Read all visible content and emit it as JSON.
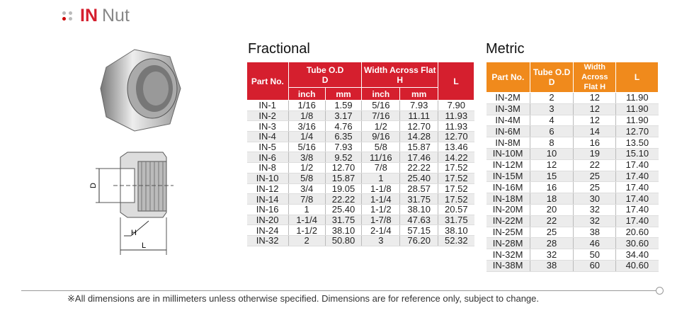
{
  "header": {
    "brand": "IN",
    "title": "Nut"
  },
  "diagram": {
    "label_d": "D",
    "label_h": "H",
    "label_l": "L"
  },
  "fractional": {
    "title": "Fractional",
    "headers": {
      "part": "Part No.",
      "tube": "Tube O.D",
      "tube_sub": "D",
      "width": "Width Across Flat H",
      "l": "L",
      "inch": "inch",
      "mm": "mm",
      "inch2": "inch",
      "mm2": "mm"
    },
    "rows": [
      [
        "IN-1",
        "1/16",
        "1.59",
        "5/16",
        "7.93",
        "7.90"
      ],
      [
        "IN-2",
        "1/8",
        "3.17",
        "7/16",
        "11.11",
        "11.93"
      ],
      [
        "IN-3",
        "3/16",
        "4.76",
        "1/2",
        "12.70",
        "11.93"
      ],
      [
        "IN-4",
        "1/4",
        "6.35",
        "9/16",
        "14.28",
        "12.70"
      ],
      [
        "IN-5",
        "5/16",
        "7.93",
        "5/8",
        "15.87",
        "13.46"
      ],
      [
        "IN-6",
        "3/8",
        "9.52",
        "11/16",
        "17.46",
        "14.22"
      ],
      [
        "IN-8",
        "1/2",
        "12.70",
        "7/8",
        "22.22",
        "17.52"
      ],
      [
        "IN-10",
        "5/8",
        "15.87",
        "1",
        "25.40",
        "17.52"
      ],
      [
        "IN-12",
        "3/4",
        "19.05",
        "1-1/8",
        "28.57",
        "17.52"
      ],
      [
        "IN-14",
        "7/8",
        "22.22",
        "1-1/4",
        "31.75",
        "17.52"
      ],
      [
        "IN-16",
        "1",
        "25.40",
        "1-1/2",
        "38.10",
        "20.57"
      ],
      [
        "IN-20",
        "1-1/4",
        "31.75",
        "1-7/8",
        "47.63",
        "31.75"
      ],
      [
        "IN-24",
        "1-1/2",
        "38.10",
        "2-1/4",
        "57.15",
        "38.10"
      ],
      [
        "IN-32",
        "2",
        "50.80",
        "3",
        "76.20",
        "52.32"
      ]
    ]
  },
  "metric": {
    "title": "Metric",
    "headers": {
      "part": "Part No.",
      "tube": "Tube O.D",
      "tube_sub": "D",
      "width": "Width",
      "width_sub": "Across Flat H",
      "l": "L"
    },
    "rows": [
      [
        "IN-2M",
        "2",
        "12",
        "11.90"
      ],
      [
        "IN-3M",
        "3",
        "12",
        "11.90"
      ],
      [
        "IN-4M",
        "4",
        "12",
        "11.90"
      ],
      [
        "IN-6M",
        "6",
        "14",
        "12.70"
      ],
      [
        "IN-8M",
        "8",
        "16",
        "13.50"
      ],
      [
        "IN-10M",
        "10",
        "19",
        "15.10"
      ],
      [
        "IN-12M",
        "12",
        "22",
        "17.40"
      ],
      [
        "IN-15M",
        "15",
        "25",
        "17.40"
      ],
      [
        "IN-16M",
        "16",
        "25",
        "17.40"
      ],
      [
        "IN-18M",
        "18",
        "30",
        "17.40"
      ],
      [
        "IN-20M",
        "20",
        "32",
        "17.40"
      ],
      [
        "IN-22M",
        "22",
        "32",
        "17.40"
      ],
      [
        "IN-25M",
        "25",
        "38",
        "20.60"
      ],
      [
        "IN-28M",
        "28",
        "46",
        "30.60"
      ],
      [
        "IN-32M",
        "32",
        "50",
        "34.40"
      ],
      [
        "IN-38M",
        "38",
        "60",
        "40.60"
      ]
    ]
  },
  "footer": {
    "note": "※All dimensions are in millimeters unless otherwise specified. Dimensions are for reference only, subject to change."
  }
}
